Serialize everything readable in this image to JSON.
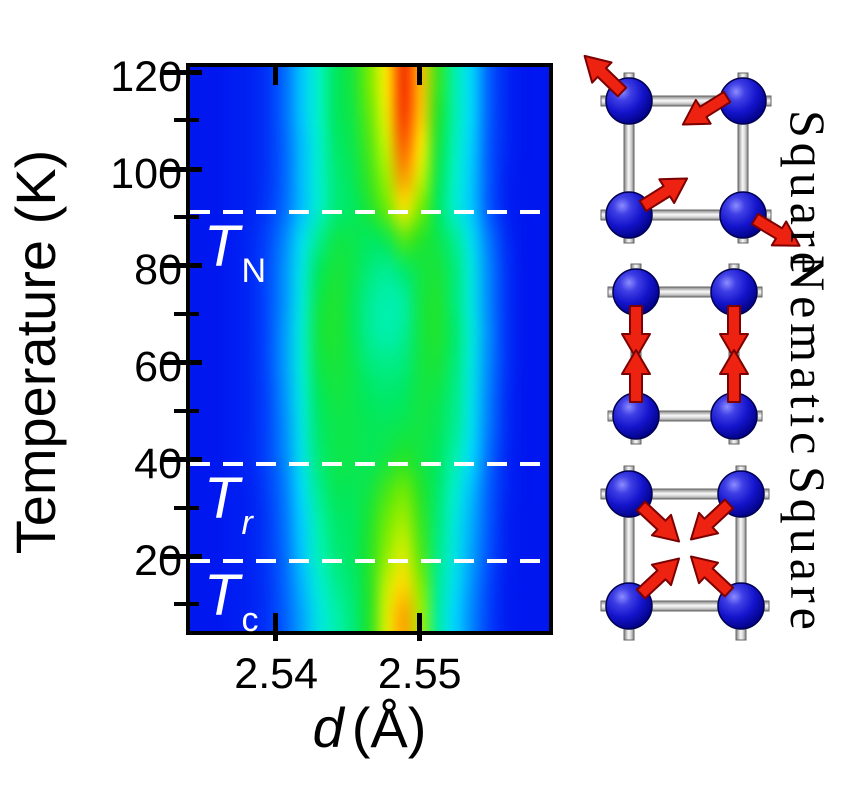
{
  "figure": {
    "background": "#ffffff"
  },
  "chart_data": {
    "type": "heatmap",
    "title": "",
    "xlabel_symbol": "d",
    "xlabel_unit": "(Å)",
    "ylabel": "Temperature (K)",
    "x_range": [
      2.534,
      2.559
    ],
    "y_range": [
      4.5,
      121
    ],
    "grid_on": false,
    "x_ticks": {
      "major": [
        2.54,
        2.55
      ],
      "major_labels": [
        "2.54",
        "2.55"
      ]
    },
    "y_ticks": {
      "major": [
        120,
        100,
        80,
        60,
        40,
        20
      ],
      "major_labels": [
        "120",
        "100",
        "80",
        "60",
        "40",
        "20"
      ],
      "minor": [
        110,
        90,
        70,
        50,
        30,
        10
      ]
    },
    "colormap": {
      "name": "jet-like",
      "stops": [
        [
          0.0,
          "#0000cf"
        ],
        [
          0.08,
          "#0017f0"
        ],
        [
          0.18,
          "#0050ff"
        ],
        [
          0.28,
          "#0092ff"
        ],
        [
          0.36,
          "#00d4ff"
        ],
        [
          0.44,
          "#00f2c8"
        ],
        [
          0.52,
          "#00e860"
        ],
        [
          0.58,
          "#25e428"
        ],
        [
          0.66,
          "#7aec00"
        ],
        [
          0.74,
          "#cdf000"
        ],
        [
          0.8,
          "#ffe600"
        ],
        [
          0.87,
          "#ff9a00"
        ],
        [
          0.93,
          "#ff5000"
        ],
        [
          1.0,
          "#ee1500"
        ]
      ]
    },
    "grid": {
      "d_values": [
        2.534,
        2.53525,
        2.5365,
        2.53775,
        2.539,
        2.54025,
        2.5415,
        2.54275,
        2.544,
        2.54525,
        2.5465,
        2.54775,
        2.549,
        2.55025,
        2.5515,
        2.55275,
        2.554,
        2.55525,
        2.5565,
        2.55775,
        2.559
      ],
      "T_values": [
        121,
        114,
        107,
        100,
        93,
        86,
        80,
        73,
        66,
        59,
        52,
        45,
        38,
        31,
        25,
        18,
        11,
        4
      ],
      "intensity": [
        [
          0.08,
          0.08,
          0.09,
          0.1,
          0.13,
          0.22,
          0.34,
          0.44,
          0.52,
          0.56,
          0.66,
          0.8,
          0.97,
          0.84,
          0.6,
          0.46,
          0.36,
          0.2,
          0.11,
          0.08,
          0.08
        ],
        [
          0.08,
          0.08,
          0.09,
          0.1,
          0.13,
          0.22,
          0.34,
          0.44,
          0.52,
          0.55,
          0.64,
          0.78,
          0.96,
          0.83,
          0.58,
          0.46,
          0.36,
          0.2,
          0.11,
          0.08,
          0.08
        ],
        [
          0.08,
          0.08,
          0.09,
          0.1,
          0.13,
          0.21,
          0.33,
          0.43,
          0.51,
          0.54,
          0.62,
          0.74,
          0.92,
          0.8,
          0.56,
          0.45,
          0.35,
          0.19,
          0.11,
          0.08,
          0.08
        ],
        [
          0.08,
          0.08,
          0.09,
          0.1,
          0.13,
          0.21,
          0.33,
          0.43,
          0.5,
          0.53,
          0.6,
          0.7,
          0.87,
          0.74,
          0.54,
          0.44,
          0.34,
          0.19,
          0.1,
          0.08,
          0.08
        ],
        [
          0.08,
          0.08,
          0.09,
          0.1,
          0.14,
          0.22,
          0.33,
          0.43,
          0.5,
          0.52,
          0.57,
          0.65,
          0.79,
          0.66,
          0.52,
          0.43,
          0.34,
          0.19,
          0.1,
          0.08,
          0.08
        ],
        [
          0.08,
          0.08,
          0.09,
          0.11,
          0.16,
          0.26,
          0.38,
          0.48,
          0.54,
          0.54,
          0.52,
          0.54,
          0.62,
          0.58,
          0.54,
          0.48,
          0.38,
          0.24,
          0.12,
          0.08,
          0.08
        ],
        [
          0.08,
          0.08,
          0.09,
          0.11,
          0.17,
          0.28,
          0.4,
          0.52,
          0.56,
          0.54,
          0.5,
          0.48,
          0.51,
          0.55,
          0.56,
          0.5,
          0.4,
          0.26,
          0.13,
          0.08,
          0.08
        ],
        [
          0.08,
          0.08,
          0.09,
          0.11,
          0.17,
          0.28,
          0.41,
          0.54,
          0.57,
          0.53,
          0.48,
          0.46,
          0.47,
          0.55,
          0.57,
          0.5,
          0.4,
          0.26,
          0.13,
          0.08,
          0.08
        ],
        [
          0.08,
          0.08,
          0.09,
          0.11,
          0.17,
          0.29,
          0.42,
          0.55,
          0.57,
          0.53,
          0.48,
          0.46,
          0.48,
          0.55,
          0.57,
          0.51,
          0.41,
          0.27,
          0.13,
          0.08,
          0.08
        ],
        [
          0.08,
          0.08,
          0.09,
          0.11,
          0.17,
          0.29,
          0.42,
          0.54,
          0.56,
          0.54,
          0.5,
          0.49,
          0.5,
          0.55,
          0.56,
          0.5,
          0.4,
          0.26,
          0.13,
          0.08,
          0.08
        ],
        [
          0.08,
          0.08,
          0.09,
          0.11,
          0.16,
          0.28,
          0.41,
          0.52,
          0.55,
          0.54,
          0.52,
          0.51,
          0.52,
          0.55,
          0.54,
          0.49,
          0.39,
          0.25,
          0.12,
          0.08,
          0.08
        ],
        [
          0.08,
          0.08,
          0.09,
          0.11,
          0.16,
          0.27,
          0.4,
          0.51,
          0.54,
          0.54,
          0.53,
          0.53,
          0.54,
          0.55,
          0.53,
          0.48,
          0.38,
          0.24,
          0.12,
          0.08,
          0.08
        ],
        [
          0.08,
          0.08,
          0.09,
          0.11,
          0.16,
          0.26,
          0.39,
          0.5,
          0.54,
          0.54,
          0.53,
          0.55,
          0.58,
          0.55,
          0.52,
          0.46,
          0.36,
          0.22,
          0.11,
          0.08,
          0.08
        ],
        [
          0.08,
          0.08,
          0.09,
          0.1,
          0.15,
          0.24,
          0.37,
          0.48,
          0.53,
          0.53,
          0.55,
          0.61,
          0.65,
          0.58,
          0.51,
          0.43,
          0.33,
          0.2,
          0.11,
          0.08,
          0.08
        ],
        [
          0.08,
          0.08,
          0.09,
          0.1,
          0.14,
          0.23,
          0.35,
          0.46,
          0.51,
          0.52,
          0.57,
          0.65,
          0.7,
          0.6,
          0.5,
          0.41,
          0.31,
          0.19,
          0.1,
          0.08,
          0.08
        ],
        [
          0.08,
          0.08,
          0.09,
          0.1,
          0.14,
          0.22,
          0.34,
          0.45,
          0.5,
          0.52,
          0.58,
          0.68,
          0.75,
          0.62,
          0.49,
          0.4,
          0.3,
          0.18,
          0.1,
          0.08,
          0.08
        ],
        [
          0.08,
          0.08,
          0.09,
          0.1,
          0.13,
          0.21,
          0.32,
          0.42,
          0.48,
          0.51,
          0.58,
          0.73,
          0.81,
          0.67,
          0.48,
          0.38,
          0.28,
          0.16,
          0.09,
          0.08,
          0.08
        ],
        [
          0.08,
          0.08,
          0.09,
          0.1,
          0.13,
          0.2,
          0.3,
          0.4,
          0.46,
          0.5,
          0.58,
          0.76,
          0.86,
          0.7,
          0.47,
          0.36,
          0.26,
          0.15,
          0.09,
          0.08,
          0.08
        ]
      ]
    },
    "transitions": [
      {
        "name": "T_N",
        "symbol": "T",
        "subscript": "N",
        "sub_italic": false,
        "temperature_K": 91
      },
      {
        "name": "T_r",
        "symbol": "T",
        "subscript": "r",
        "sub_italic": true,
        "temperature_K": 39
      },
      {
        "name": "T_c",
        "symbol": "T",
        "subscript": "c",
        "sub_italic": false,
        "temperature_K": 19
      }
    ],
    "transition_line_style": {
      "color": "#ffffff",
      "dash": "dashed"
    }
  },
  "diagrams": [
    {
      "label": "Square",
      "phase": "high-temperature square lattice",
      "arrows": "random in-plane displacement directions"
    },
    {
      "label": "Nematic",
      "phase": "nematic rectangular lattice",
      "arrows": "vertical arrows pointing inward along bonds"
    },
    {
      "label": "Square",
      "phase": "low-temperature square lattice",
      "arrows": "diagonal arrows pointing toward cell center"
    }
  ],
  "colors": {
    "sphere": "#1414cc",
    "rod": "#d0d0d0",
    "arrow": "#ee2211",
    "dashed_line": "#ffffff",
    "plot_border": "#000000",
    "hot_peak": "#ee1500",
    "background_low": "#0017f0"
  }
}
